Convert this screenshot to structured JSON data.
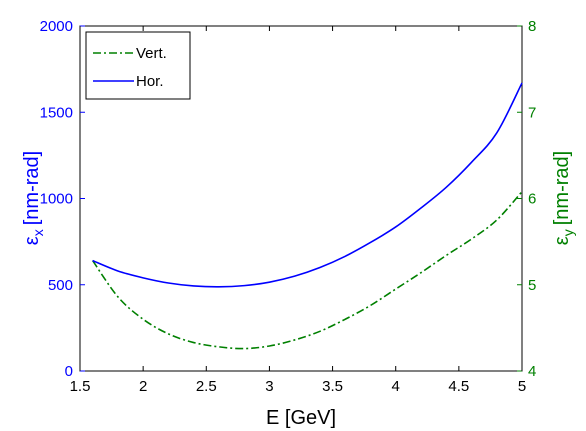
{
  "chart_data": {
    "type": "line",
    "xlabel": "E [GeV]",
    "ylabel_left_main": "ε",
    "ylabel_left_sub": "x",
    "ylabel_left_unit": "[nm-rad]",
    "ylabel_right_main": "ε",
    "ylabel_right_sub": "y",
    "ylabel_right_unit": "[nm-rad]",
    "xlim": [
      1.5,
      5
    ],
    "ylim_left": [
      0,
      2000
    ],
    "ylim_right": [
      4,
      8
    ],
    "x_ticks": [
      "1.5",
      "2",
      "2.5",
      "3",
      "3.5",
      "4",
      "4.5",
      "5"
    ],
    "y_left_ticks": [
      "0",
      "500",
      "1000",
      "1500",
      "2000"
    ],
    "y_right_ticks": [
      "4",
      "5",
      "6",
      "7",
      "8"
    ],
    "legend_position": "top-left",
    "grid": false,
    "colors": {
      "left_axis": "#0000ff",
      "right_axis": "#008000",
      "vert": "#008000",
      "hor": "#0000ff"
    },
    "series": [
      {
        "name": "Vert.",
        "axis": "right",
        "style": "dash-dot",
        "x": [
          1.6,
          1.8,
          2.0,
          2.2,
          2.4,
          2.6,
          2.8,
          3.0,
          3.2,
          3.4,
          3.6,
          3.8,
          4.0,
          4.2,
          4.4,
          4.6,
          4.8,
          5.0
        ],
        "values": [
          5.28,
          4.86,
          4.6,
          4.43,
          4.33,
          4.28,
          4.26,
          4.29,
          4.36,
          4.46,
          4.6,
          4.76,
          4.95,
          5.14,
          5.34,
          5.53,
          5.75,
          6.08
        ]
      },
      {
        "name": "Hor.",
        "axis": "left",
        "style": "solid",
        "x": [
          1.6,
          1.8,
          2.0,
          2.2,
          2.4,
          2.6,
          2.8,
          3.0,
          3.2,
          3.4,
          3.6,
          3.8,
          4.0,
          4.2,
          4.4,
          4.6,
          4.8,
          5.0
        ],
        "values": [
          640,
          580,
          540,
          510,
          493,
          488,
          495,
          515,
          550,
          600,
          665,
          745,
          835,
          945,
          1065,
          1210,
          1380,
          1670
        ]
      }
    ]
  }
}
